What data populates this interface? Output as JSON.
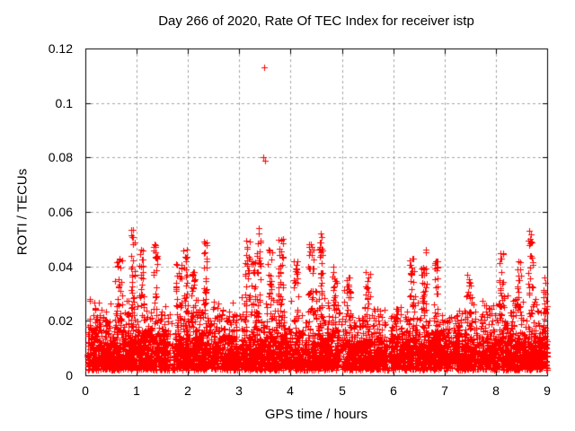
{
  "chart_data": {
    "type": "scatter",
    "title": "Day 266 of 2020, Rate Of TEC Index for receiver istp",
    "xlabel": "GPS time / hours",
    "ylabel": "ROTI / TECUs",
    "xlim": [
      0,
      9
    ],
    "ylim": [
      0,
      0.12
    ],
    "xticks": [
      0,
      1,
      2,
      3,
      4,
      5,
      6,
      7,
      8,
      9
    ],
    "yticks": [
      0,
      0.02,
      0.04,
      0.06,
      0.08,
      0.1,
      0.12
    ],
    "xtick_labels": [
      "0",
      "1",
      "2",
      "3",
      "4",
      "5",
      "6",
      "7",
      "8",
      "9"
    ],
    "ytick_labels": [
      "0",
      "0.02",
      "0.04",
      "0.06",
      "0.08",
      "0.1",
      "0.12"
    ],
    "grid": true,
    "grid_style": "dashed",
    "grid_color": "#a6a6a6",
    "axis_color": "#000000",
    "background_color": "#ffffff",
    "legend": "none",
    "marker": {
      "shape": "plus",
      "color": "#ff0000",
      "size": 7
    },
    "outliers": [
      [
        3.48,
        0.113
      ],
      [
        3.47,
        0.0802
      ],
      [
        3.51,
        0.0788
      ]
    ],
    "bursts_format": [
      "center_hour",
      "halfwidth_hour",
      "peak_roti",
      "n_points"
    ],
    "bursts": [
      [
        0.67,
        0.05,
        0.043,
        22
      ],
      [
        0.93,
        0.04,
        0.0535,
        28
      ],
      [
        1.1,
        0.05,
        0.046,
        22
      ],
      [
        1.37,
        0.04,
        0.048,
        24
      ],
      [
        1.82,
        0.06,
        0.041,
        26
      ],
      [
        1.95,
        0.04,
        0.046,
        20
      ],
      [
        2.1,
        0.04,
        0.038,
        18
      ],
      [
        2.33,
        0.05,
        0.049,
        26
      ],
      [
        3.17,
        0.05,
        0.0495,
        24
      ],
      [
        3.28,
        0.04,
        0.042,
        18
      ],
      [
        3.38,
        0.04,
        0.054,
        24
      ],
      [
        3.6,
        0.05,
        0.046,
        22
      ],
      [
        3.81,
        0.05,
        0.05,
        28
      ],
      [
        4.1,
        0.04,
        0.042,
        18
      ],
      [
        4.4,
        0.05,
        0.048,
        24
      ],
      [
        4.59,
        0.04,
        0.052,
        28
      ],
      [
        4.85,
        0.05,
        0.04,
        18
      ],
      [
        5.13,
        0.04,
        0.036,
        16
      ],
      [
        5.5,
        0.05,
        0.038,
        16
      ],
      [
        6.36,
        0.05,
        0.043,
        24
      ],
      [
        6.6,
        0.05,
        0.046,
        24
      ],
      [
        6.83,
        0.04,
        0.042,
        18
      ],
      [
        7.48,
        0.05,
        0.037,
        16
      ],
      [
        8.11,
        0.05,
        0.045,
        24
      ],
      [
        8.45,
        0.04,
        0.042,
        18
      ],
      [
        8.68,
        0.05,
        0.053,
        28
      ],
      [
        8.95,
        0.04,
        0.036,
        14
      ]
    ],
    "base_band": {
      "n_points": 6000,
      "x_min": 0.04,
      "x_max": 9.0,
      "y_floor": 0.002,
      "sigma": 0.0095,
      "spill_fraction": 0.025,
      "spill_extra": 0.008,
      "top_x": [
        0,
        0.5,
        1,
        1.5,
        2,
        2.5,
        3,
        3.5,
        4,
        4.5,
        5,
        5.5,
        6,
        6.5,
        7,
        7.5,
        8,
        8.5,
        9
      ],
      "top_y": [
        0.03,
        0.027,
        0.03,
        0.026,
        0.028,
        0.03,
        0.026,
        0.03,
        0.031,
        0.033,
        0.028,
        0.025,
        0.024,
        0.031,
        0.022,
        0.026,
        0.029,
        0.032,
        0.034
      ]
    },
    "gaps_format": [
      "center_hour",
      "halfwidth_hour",
      "keep_fraction"
    ],
    "gaps": [
      [
        1.67,
        0.05,
        0.35
      ],
      [
        2.56,
        0.03,
        0.5
      ],
      [
        2.98,
        0.04,
        0.4
      ],
      [
        4.03,
        0.03,
        0.5
      ],
      [
        4.97,
        0.03,
        0.5
      ],
      [
        5.9,
        0.04,
        0.45
      ],
      [
        7.15,
        0.05,
        0.5
      ],
      [
        7.65,
        0.04,
        0.55
      ]
    ],
    "seed": 266
  }
}
